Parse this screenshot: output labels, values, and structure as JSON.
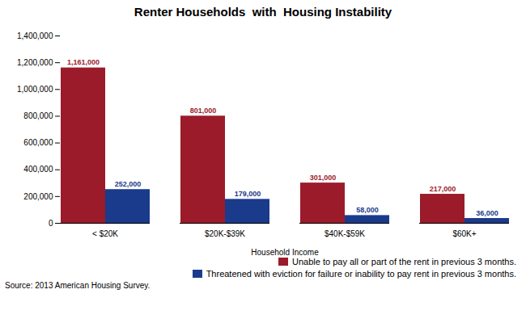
{
  "chart_data": {
    "type": "bar",
    "title": "Renter Households  with  Housing Instability",
    "xlabel": "Household Income",
    "categories": [
      "< $20K",
      "$20K-$39K",
      "$40K-$59K",
      "$60K+"
    ],
    "series": [
      {
        "name": "Unable to pay all or part of the rent in previous 3 months.",
        "color": "#9B1B2A",
        "values": [
          1161000,
          801000,
          301000,
          217000
        ],
        "value_labels": [
          "1,161,000",
          "801,000",
          "301,000",
          "217,000"
        ]
      },
      {
        "name": "Threatened with eviction for failure or inability to pay rent in previous 3 months.",
        "color": "#1A3A8C",
        "values": [
          252000,
          179000,
          58000,
          36000
        ],
        "value_labels": [
          "252,000",
          "179,000",
          "58,000",
          "36,000"
        ]
      }
    ],
    "ylim": [
      0,
      1400000
    ],
    "yticks": [
      0,
      {
        "value": 200000,
        "label": "200,000"
      },
      {
        "value": 400000,
        "label": "400,000"
      },
      {
        "value": 600000,
        "label": "600,000"
      },
      {
        "value": 800000,
        "label": "800,000"
      },
      {
        "value": 1000000,
        "label": "1,000,000"
      },
      {
        "value": 1200000,
        "label": "1,200,000"
      },
      {
        "value": 1400000,
        "label": "1,400,000"
      }
    ],
    "data_labels": true,
    "grid": false,
    "legend": "bottom right",
    "annotations": [
      "Source: 2013 American Housing Survey."
    ]
  }
}
